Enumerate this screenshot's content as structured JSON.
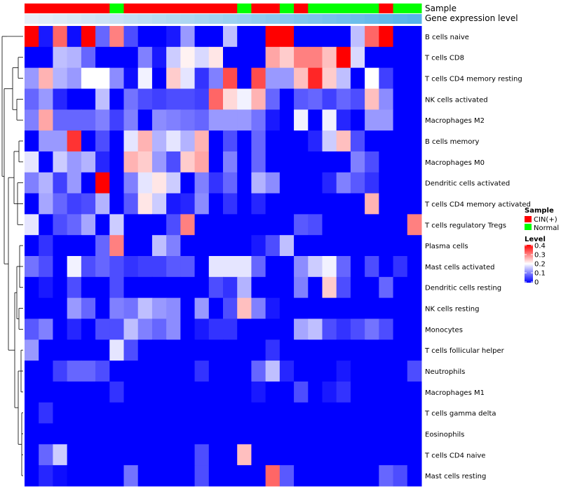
{
  "chart_data": {
    "type": "heatmap",
    "title": "",
    "annotation_labels": {
      "sample": "Sample",
      "expression": "Gene expression level"
    },
    "sample_groups": [
      "CIN",
      "CIN",
      "CIN",
      "CIN",
      "CIN",
      "CIN",
      "Normal",
      "CIN",
      "CIN",
      "CIN",
      "CIN",
      "CIN",
      "CIN",
      "CIN",
      "CIN",
      "Normal",
      "CIN",
      "CIN",
      "Normal",
      "CIN",
      "Normal",
      "Normal",
      "Normal",
      "Normal",
      "Normal",
      "CIN",
      "Normal",
      "Normal"
    ],
    "sample_levels": [
      0.0,
      0.02,
      0.04,
      0.06,
      0.08,
      0.1,
      0.12,
      0.14,
      0.16,
      0.18,
      0.2,
      0.22,
      0.24,
      0.26,
      0.28,
      0.3,
      0.32,
      0.34,
      0.36,
      0.38,
      0.4,
      0.42,
      0.44,
      0.46,
      0.48,
      0.5,
      0.52,
      0.54
    ],
    "rows": [
      "B cells naive",
      "T cells CD8",
      "T cells CD4 memory resting",
      "NK cells activated",
      "Macrophages M2",
      "B cells memory",
      "Macrophages M0",
      "Dendritic cells activated",
      "T cells CD4 memory activated",
      "T cells regulatory  Tregs",
      "Plasma cells",
      "Mast cells activated",
      "Dendritic cells resting",
      "NK cells resting",
      "Monocytes",
      "T cells follicular helper",
      "Neutrophils",
      "Macrophages M1",
      "T cells gamma delta",
      "Eosinophils",
      "T cells CD4 naive",
      "Mast cells resting"
    ],
    "values": [
      [
        0.4,
        0.02,
        0.32,
        0.01,
        0.4,
        0.08,
        0.3,
        0.06,
        0.0,
        0.0,
        0.02,
        0.12,
        0.0,
        0.0,
        0.15,
        0.0,
        0.0,
        0.4,
        0.4,
        0.0,
        0.0,
        0.0,
        0.0,
        0.15,
        0.32,
        0.4,
        0.0,
        0.0
      ],
      [
        0.0,
        0.0,
        0.15,
        0.14,
        0.08,
        0.0,
        0.0,
        0.0,
        0.1,
        0.02,
        0.16,
        0.21,
        0.17,
        0.22,
        0.0,
        0.0,
        0.0,
        0.27,
        0.24,
        0.3,
        0.3,
        0.25,
        0.4,
        0.17,
        0.0,
        0.0,
        0.0,
        0.0
      ],
      [
        0.12,
        0.26,
        0.14,
        0.12,
        0.2,
        0.2,
        0.11,
        0.01,
        0.19,
        0.0,
        0.24,
        0.18,
        0.04,
        0.1,
        0.34,
        0.0,
        0.34,
        0.12,
        0.12,
        0.25,
        0.37,
        0.24,
        0.15,
        0.0,
        0.2,
        0.05,
        0.0,
        0.0
      ],
      [
        0.08,
        0.12,
        0.03,
        0.0,
        0.0,
        0.15,
        0.0,
        0.09,
        0.06,
        0.05,
        0.06,
        0.06,
        0.05,
        0.32,
        0.23,
        0.19,
        0.26,
        0.08,
        0.0,
        0.07,
        0.08,
        0.05,
        0.08,
        0.06,
        0.25,
        0.11,
        0.0,
        0.0
      ],
      [
        0.1,
        0.27,
        0.08,
        0.08,
        0.08,
        0.1,
        0.05,
        0.1,
        0.0,
        0.11,
        0.1,
        0.09,
        0.08,
        0.12,
        0.12,
        0.12,
        0.09,
        0.02,
        0.0,
        0.19,
        0.0,
        0.19,
        0.03,
        0.0,
        0.12,
        0.12,
        0.0,
        0.0
      ],
      [
        0.0,
        0.12,
        0.12,
        0.36,
        0.0,
        0.06,
        0.0,
        0.18,
        0.26,
        0.14,
        0.18,
        0.14,
        0.26,
        0.0,
        0.06,
        0.0,
        0.08,
        0.0,
        0.0,
        0.0,
        0.03,
        0.16,
        0.25,
        0.06,
        0.0,
        0.0,
        0.0,
        0.0
      ],
      [
        0.18,
        0.0,
        0.16,
        0.12,
        0.14,
        0.03,
        0.0,
        0.26,
        0.24,
        0.12,
        0.06,
        0.24,
        0.27,
        0.0,
        0.1,
        0.0,
        0.08,
        0.0,
        0.0,
        0.0,
        0.0,
        0.0,
        0.0,
        0.1,
        0.06,
        0.0,
        0.0,
        0.0
      ],
      [
        0.1,
        0.14,
        0.05,
        0.12,
        0.0,
        0.4,
        0.0,
        0.1,
        0.18,
        0.22,
        0.16,
        0.0,
        0.1,
        0.04,
        0.08,
        0.0,
        0.14,
        0.11,
        0.0,
        0.0,
        0.0,
        0.03,
        0.1,
        0.07,
        0.04,
        0.0,
        0.0,
        0.0
      ],
      [
        0.0,
        0.13,
        0.08,
        0.05,
        0.06,
        0.14,
        0.0,
        0.07,
        0.22,
        0.16,
        0.02,
        0.03,
        0.11,
        0.0,
        0.04,
        0.0,
        0.03,
        0.0,
        0.0,
        0.0,
        0.0,
        0.0,
        0.0,
        0.0,
        0.26,
        0.0,
        0.0,
        0.0
      ],
      [
        0.18,
        0.0,
        0.06,
        0.08,
        0.13,
        0.0,
        0.16,
        0.0,
        0.0,
        0.0,
        0.06,
        0.3,
        0.0,
        0.0,
        0.0,
        0.0,
        0.0,
        0.0,
        0.0,
        0.07,
        0.06,
        0.0,
        0.0,
        0.0,
        0.0,
        0.0,
        0.0,
        0.3
      ],
      [
        0.0,
        0.04,
        0.0,
        0.0,
        0.0,
        0.08,
        0.3,
        0.0,
        0.0,
        0.15,
        0.1,
        0.0,
        0.0,
        0.0,
        0.0,
        0.0,
        0.02,
        0.06,
        0.15,
        0.0,
        0.0,
        0.0,
        0.0,
        0.0,
        0.0,
        0.0,
        0.0,
        0.0
      ],
      [
        0.09,
        0.06,
        0.0,
        0.19,
        0.06,
        0.08,
        0.06,
        0.04,
        0.05,
        0.05,
        0.07,
        0.07,
        0.0,
        0.18,
        0.18,
        0.18,
        0.08,
        0.0,
        0.0,
        0.11,
        0.16,
        0.19,
        0.08,
        0.0,
        0.06,
        0.0,
        0.04,
        0.0
      ],
      [
        0.0,
        0.02,
        0.0,
        0.06,
        0.0,
        0.0,
        0.06,
        0.0,
        0.0,
        0.0,
        0.0,
        0.0,
        0.0,
        0.06,
        0.04,
        0.14,
        0.0,
        0.0,
        0.0,
        0.1,
        0.0,
        0.24,
        0.06,
        0.0,
        0.0,
        0.08,
        0.0,
        0.0
      ],
      [
        0.0,
        0.0,
        0.0,
        0.12,
        0.08,
        0.0,
        0.1,
        0.09,
        0.15,
        0.12,
        0.11,
        0.0,
        0.12,
        0.0,
        0.06,
        0.25,
        0.1,
        0.02,
        0.0,
        0.0,
        0.0,
        0.0,
        0.0,
        0.0,
        0.0,
        0.0,
        0.0,
        0.0
      ],
      [
        0.07,
        0.1,
        0.0,
        0.03,
        0.0,
        0.06,
        0.06,
        0.15,
        0.1,
        0.08,
        0.11,
        0.0,
        0.02,
        0.04,
        0.04,
        0.0,
        0.0,
        0.0,
        0.0,
        0.13,
        0.15,
        0.06,
        0.04,
        0.06,
        0.09,
        0.06,
        0.0,
        0.0
      ],
      [
        0.12,
        0.0,
        0.0,
        0.0,
        0.0,
        0.0,
        0.18,
        0.06,
        0.0,
        0.0,
        0.0,
        0.0,
        0.0,
        0.0,
        0.0,
        0.0,
        0.0,
        0.04,
        0.0,
        0.0,
        0.0,
        0.0,
        0.0,
        0.0,
        0.0,
        0.0,
        0.0,
        0.0
      ],
      [
        0.0,
        0.0,
        0.05,
        0.08,
        0.08,
        0.06,
        0.0,
        0.0,
        0.0,
        0.0,
        0.0,
        0.0,
        0.04,
        0.0,
        0.0,
        0.0,
        0.08,
        0.15,
        0.03,
        0.0,
        0.0,
        0.0,
        0.02,
        0.0,
        0.0,
        0.0,
        0.0,
        0.06
      ],
      [
        0.0,
        0.0,
        0.0,
        0.0,
        0.0,
        0.0,
        0.04,
        0.0,
        0.0,
        0.0,
        0.0,
        0.0,
        0.0,
        0.0,
        0.0,
        0.0,
        0.02,
        0.0,
        0.0,
        0.06,
        0.0,
        0.02,
        0.04,
        0.0,
        0.0,
        0.0,
        0.0,
        0.0
      ],
      [
        0.0,
        0.04,
        0.0,
        0.0,
        0.0,
        0.0,
        0.0,
        0.0,
        0.0,
        0.0,
        0.0,
        0.0,
        0.0,
        0.0,
        0.0,
        0.0,
        0.0,
        0.0,
        0.0,
        0.0,
        0.0,
        0.0,
        0.0,
        0.0,
        0.0,
        0.0,
        0.0,
        0.0
      ],
      [
        0.0,
        0.0,
        0.0,
        0.0,
        0.0,
        0.0,
        0.0,
        0.0,
        0.0,
        0.0,
        0.0,
        0.0,
        0.0,
        0.0,
        0.0,
        0.0,
        0.0,
        0.0,
        0.0,
        0.0,
        0.0,
        0.0,
        0.0,
        0.0,
        0.0,
        0.0,
        0.0,
        0.0
      ],
      [
        0.0,
        0.08,
        0.16,
        0.0,
        0.0,
        0.0,
        0.0,
        0.0,
        0.0,
        0.0,
        0.0,
        0.0,
        0.06,
        0.0,
        0.0,
        0.25,
        0.0,
        0.0,
        0.0,
        0.0,
        0.0,
        0.0,
        0.0,
        0.0,
        0.0,
        0.0,
        0.0,
        0.0
      ],
      [
        0.0,
        0.03,
        0.01,
        0.0,
        0.0,
        0.0,
        0.0,
        0.09,
        0.0,
        0.0,
        0.0,
        0.0,
        0.06,
        0.0,
        0.0,
        0.0,
        0.0,
        0.32,
        0.07,
        0.0,
        0.0,
        0.0,
        0.0,
        0.0,
        0.0,
        0.08,
        0.06,
        0.0
      ]
    ],
    "color_scale": {
      "min": 0,
      "mid": 0.2,
      "max": 0.4,
      "low": "#0000ff",
      "mid_color": "#ffffff",
      "high": "#ff0000"
    },
    "legend": {
      "sample_title": "Sample",
      "sample_items": [
        {
          "label": "CIN(+)",
          "color": "#ff0000"
        },
        {
          "label": "Normal",
          "color": "#00ff00"
        }
      ],
      "level_title": "Level",
      "level_ticks": [
        "0.4",
        "0.3",
        "0.2",
        "0.1",
        "0"
      ]
    },
    "colors": {
      "cin": "#ff0000",
      "normal": "#00ff00",
      "level_light": "#e8eef8",
      "level_dark": "#56b4e9"
    }
  }
}
